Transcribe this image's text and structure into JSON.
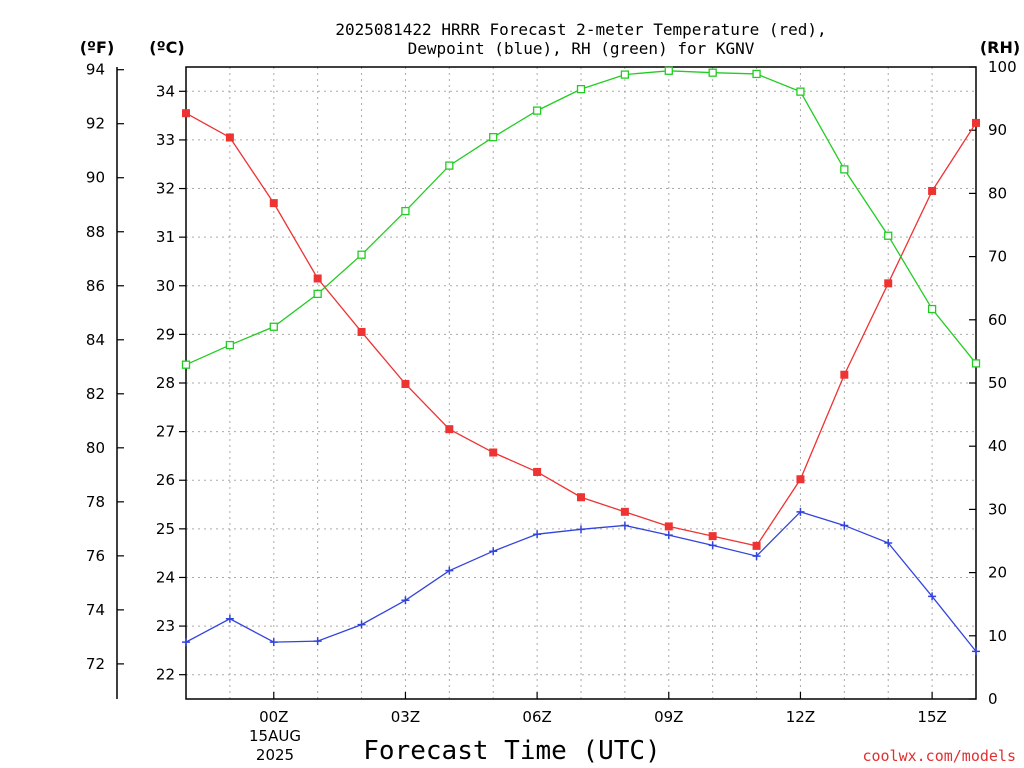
{
  "title": {
    "line1": "2025081422 HRRR Forecast 2-meter Temperature (red),",
    "line2": "Dewpoint (blue), RH (green) for KGNV"
  },
  "units": {
    "fahrenheit": "(ºF)",
    "celsius": "(ºC)",
    "rh": "(RH)"
  },
  "xlabel": "Forecast Time (UTC)",
  "credit": "coolwx.com/models",
  "date_label": {
    "line1": "15AUG",
    "line2": "2025"
  },
  "chart_data": {
    "type": "line",
    "x": [
      -2,
      -1,
      0,
      1,
      2,
      3,
      4,
      5,
      6,
      7,
      8,
      9,
      10,
      11,
      12,
      13,
      14,
      15,
      16
    ],
    "x_tick_values": [
      0,
      3,
      6,
      9,
      12,
      15
    ],
    "x_tick_labels": [
      "00Z",
      "03Z",
      "06Z",
      "09Z",
      "12Z",
      "15Z"
    ],
    "xlim": [
      -2,
      16
    ],
    "y_celsius": {
      "ylim": [
        21.5,
        34.5
      ],
      "ticks": [
        22,
        23,
        24,
        25,
        26,
        27,
        28,
        29,
        30,
        31,
        32,
        33,
        34
      ]
    },
    "y_fahrenheit": {
      "ticks": [
        72,
        74,
        76,
        78,
        80,
        82,
        84,
        86,
        88,
        90,
        92,
        94
      ]
    },
    "y_rh": {
      "ylim": [
        0,
        100
      ],
      "ticks": [
        0,
        10,
        20,
        30,
        40,
        50,
        60,
        70,
        80,
        90,
        100
      ]
    },
    "grid": true,
    "series": [
      {
        "key": "temperature",
        "axis": "celsius",
        "color": "#ee3333",
        "marker": "filled-square",
        "values": [
          33.55,
          33.05,
          31.7,
          30.15,
          29.05,
          27.98,
          27.05,
          26.57,
          26.17,
          25.65,
          25.35,
          25.05,
          24.85,
          24.65,
          26.02,
          28.17,
          30.05,
          31.95,
          33.35
        ]
      },
      {
        "key": "dewpoint",
        "axis": "celsius",
        "color": "#3344dd",
        "marker": "plus",
        "values": [
          22.67,
          23.15,
          22.67,
          22.69,
          23.03,
          23.53,
          24.14,
          24.54,
          24.89,
          24.99,
          25.07,
          24.87,
          24.66,
          24.44,
          25.35,
          25.07,
          24.71,
          23.61,
          22.48
        ]
      },
      {
        "key": "rh",
        "axis": "rh",
        "color": "#22cc22",
        "marker": "open-square",
        "values": [
          52.9,
          56.0,
          58.9,
          64.1,
          70.3,
          77.2,
          84.4,
          88.9,
          93.1,
          96.5,
          98.8,
          99.4,
          99.1,
          98.9,
          96.1,
          83.8,
          73.3,
          61.7,
          53.1
        ]
      }
    ]
  }
}
